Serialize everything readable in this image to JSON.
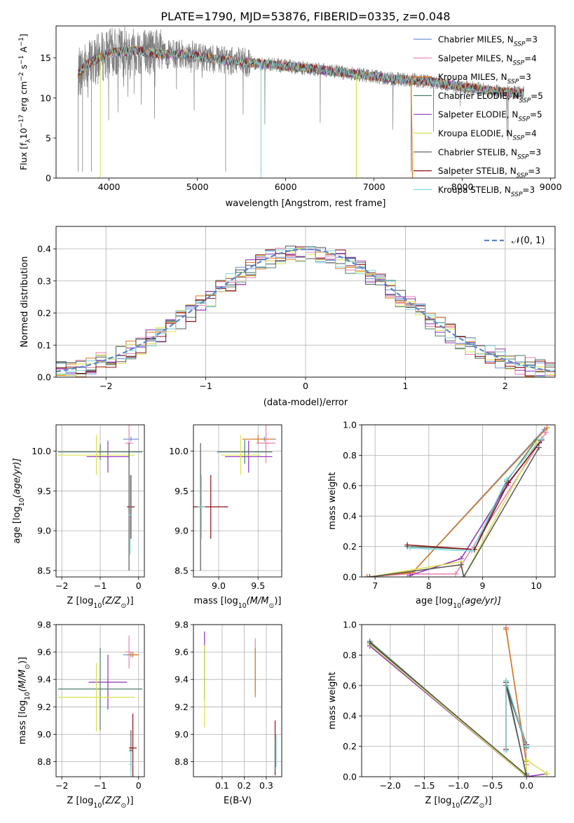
{
  "title": "PLATE=1790, MJD=53876, FIBERID=0335, z=0.048",
  "colors": [
    "#6d8fd6",
    "#e97fb0",
    "#d97a1c",
    "#4f7b6a",
    "#8e2fb8",
    "#d8e04a",
    "#555555",
    "#8b1010",
    "#7dd8e0"
  ],
  "normal_color": "#5b86c9",
  "legend_labels": [
    "Chabrier MILES, N",
    "Salpeter MILES, N",
    "Kroupa MILES, N",
    "Chabrier ELODIE, N",
    "Salpeter ELODIE, N",
    "Kroupa ELODIE, N",
    "Chabrier STELIB, N",
    "Salpeter STELIB, N",
    "Kroupa STELIB, N"
  ],
  "legend_sub": "SSP",
  "legend_nssp": [
    "=3",
    "=4",
    "=3",
    "=5",
    "=5",
    "=4",
    "=3",
    "=3",
    "=3"
  ],
  "normal_label": "𝒩(0, 1)",
  "chart_data": [
    {
      "id": "spectrum",
      "type": "line",
      "xlabel": "wavelength [Angstrom, rest frame]",
      "ylabel_main": "Flux [f",
      "ylabel_sub": "λ",
      "ylabel_rest": "10",
      "ylabel_sup1": "−17",
      "ylabel_mid": " erg cm",
      "ylabel_sup2": "−2",
      "ylabel_mid2": " s",
      "ylabel_sup3": "−1",
      "ylabel_mid3": " A",
      "ylabel_sup4": "−1",
      "ylabel_end": "]",
      "xlim": [
        3400,
        9050
      ],
      "ylim": [
        0,
        19
      ],
      "xticks": [
        "4000",
        "5000",
        "6000",
        "7000",
        "8000",
        "9000"
      ],
      "yticks": [
        "0",
        "5",
        "10",
        "15"
      ],
      "data_range": [
        3650,
        8700
      ],
      "continuum": [
        [
          3650,
          13.0
        ],
        [
          3750,
          14.2
        ],
        [
          4000,
          15.6
        ],
        [
          4300,
          16.0
        ],
        [
          4600,
          15.4
        ],
        [
          4900,
          15.5
        ],
        [
          5200,
          14.8
        ],
        [
          5600,
          14.4
        ],
        [
          6000,
          14.0
        ],
        [
          6400,
          13.5
        ],
        [
          6800,
          13.0
        ],
        [
          7200,
          12.4
        ],
        [
          7600,
          12.1
        ],
        [
          8000,
          11.4
        ],
        [
          8400,
          10.8
        ],
        [
          8700,
          10.6
        ]
      ],
      "model_lines": [
        [
          7420,
          0
        ],
        [
          6800,
          0
        ],
        [
          3900,
          0
        ],
        [
          5720,
          0
        ]
      ]
    },
    {
      "id": "residuals",
      "type": "histogram",
      "xlabel": "(data-model)/error",
      "ylabel": "Normed distribution",
      "xlim": [
        -2.5,
        2.5
      ],
      "ylim": [
        0,
        0.47
      ],
      "xticks": [
        "−2",
        "−1",
        "0",
        "1",
        "2"
      ],
      "yticks": [
        "0.0",
        "0.1",
        "0.2",
        "0.3",
        "0.4"
      ],
      "bin_width": 0.1,
      "bins_start": -2.5,
      "normal": {
        "mu": 0,
        "sigma": 1
      }
    },
    {
      "id": "age_vs_Z",
      "type": "scatter",
      "xlabel": "Z [log",
      "xlabel_sub": "10",
      "xlabel_rest": "(Z/Z",
      "xlabel_sub2": "⊙",
      "xlabel_end": ")]",
      "ylabel": "age  [log",
      "ylabel_sub": "10",
      "ylabel_rest": "(age/yr)]",
      "xlim": [
        -2.15,
        0.15
      ],
      "ylim": [
        8.42,
        10.33
      ],
      "xticks": [
        "−2",
        "−1",
        "0"
      ],
      "yticks": [
        "8.5",
        "9.0",
        "9.5",
        "10.0"
      ],
      "points": [
        {
          "x": -0.2,
          "y": 10.15,
          "xerr": 0.2,
          "yerr": 0.03,
          "c": 0
        },
        {
          "x": -0.25,
          "y": 10.1,
          "xerr": 0.1,
          "yerr": 0.25,
          "c": 1
        },
        {
          "x": -0.8,
          "y": 9.93,
          "xerr": 0.55,
          "yerr": 0.2,
          "c": 4
        },
        {
          "x": -1.0,
          "y": 9.99,
          "xerr": 1.1,
          "yerr": 0.1,
          "c": 3
        },
        {
          "x": -1.1,
          "y": 9.95,
          "xerr": 1.0,
          "yerr": 0.25,
          "c": 5
        },
        {
          "x": -0.25,
          "y": 9.3,
          "xerr": 0.05,
          "yerr": 0.8,
          "c": 6
        },
        {
          "x": -0.2,
          "y": 9.3,
          "xerr": 0.1,
          "yerr": 0.4,
          "c": 7
        },
        {
          "x": -0.22,
          "y": 9.2,
          "xerr": 0.05,
          "yerr": 0.5,
          "c": 8
        }
      ]
    },
    {
      "id": "age_vs_mass",
      "type": "scatter",
      "xlabel": "mass [log",
      "xlabel_sub": "10",
      "xlabel_rest": "(M/M",
      "xlabel_sub2": "⊙",
      "xlabel_end": ")]",
      "xlim": [
        8.68,
        9.8
      ],
      "ylim": [
        8.42,
        10.33
      ],
      "xticks": [
        "9.0",
        "9.5"
      ],
      "yticks": [
        "8.5",
        "9.0",
        "9.5",
        "10.0"
      ],
      "points": [
        {
          "x": 9.58,
          "y": 10.15,
          "xerr": 0.15,
          "yerr": 0.03,
          "c": 0
        },
        {
          "x": 9.6,
          "y": 10.1,
          "xerr": 0.12,
          "yerr": 0.25,
          "c": 1
        },
        {
          "x": 9.5,
          "y": 10.15,
          "xerr": 0.2,
          "yerr": 0.05,
          "c": 2
        },
        {
          "x": 9.38,
          "y": 9.93,
          "xerr": 0.3,
          "yerr": 0.2,
          "c": 4
        },
        {
          "x": 9.33,
          "y": 9.99,
          "xerr": 0.35,
          "yerr": 0.15,
          "c": 3
        },
        {
          "x": 9.28,
          "y": 9.95,
          "xerr": 0.25,
          "yerr": 0.25,
          "c": 5
        },
        {
          "x": 8.77,
          "y": 9.3,
          "xerr": 0.05,
          "yerr": 0.8,
          "c": 6
        },
        {
          "x": 8.9,
          "y": 9.3,
          "xerr": 0.22,
          "yerr": 0.4,
          "c": 7
        },
        {
          "x": 8.78,
          "y": 9.3,
          "xerr": 0.05,
          "yerr": 0.4,
          "c": 8
        }
      ]
    },
    {
      "id": "massweight_vs_age",
      "type": "line",
      "xlabel": "age  [log",
      "xlabel_sub": "10",
      "xlabel_rest": "(age/yr)]",
      "ylabel": "mass weight",
      "xlim": [
        6.75,
        10.35
      ],
      "ylim": [
        0,
        1
      ],
      "xticks": [
        "7",
        "8",
        "9",
        "10"
      ],
      "yticks": [
        "0.0",
        "0.2",
        "0.4",
        "0.6",
        "0.8",
        "1.0"
      ],
      "series": [
        {
          "c": 0,
          "pts": [
            [
              6.85,
              0.0
            ],
            [
              7.7,
              0.03
            ],
            [
              10.15,
              0.97
            ]
          ]
        },
        {
          "c": 1,
          "pts": [
            [
              6.85,
              0.0
            ],
            [
              7.6,
              0.02
            ],
            [
              8.5,
              0.02
            ],
            [
              10.18,
              0.95
            ]
          ]
        },
        {
          "c": 2,
          "pts": [
            [
              6.85,
              0.0
            ],
            [
              7.7,
              0.03
            ],
            [
              10.2,
              0.98
            ]
          ]
        },
        {
          "c": 3,
          "pts": [
            [
              7.6,
              0.2
            ],
            [
              8.85,
              0.18
            ],
            [
              9.45,
              0.63
            ],
            [
              10.0,
              0.9
            ]
          ]
        },
        {
          "c": 4,
          "pts": [
            [
              7.65,
              0.01
            ],
            [
              8.6,
              0.12
            ],
            [
              9.45,
              0.6
            ],
            [
              10.05,
              0.88
            ]
          ]
        },
        {
          "c": 5,
          "pts": [
            [
              6.9,
              0.0
            ],
            [
              8.6,
              0.1
            ],
            [
              8.65,
              0.0
            ],
            [
              10.0,
              0.88
            ]
          ]
        },
        {
          "c": 6,
          "pts": [
            [
              6.9,
              0.0
            ],
            [
              8.6,
              0.08
            ],
            [
              8.65,
              0.0
            ],
            [
              10.05,
              0.85
            ]
          ]
        },
        {
          "c": 7,
          "pts": [
            [
              7.6,
              0.21
            ],
            [
              8.85,
              0.18
            ],
            [
              9.48,
              0.62
            ],
            [
              10.1,
              0.9
            ]
          ]
        },
        {
          "c": 8,
          "pts": [
            [
              7.65,
              0.19
            ],
            [
              8.8,
              0.17
            ],
            [
              9.45,
              0.64
            ],
            [
              10.1,
              0.91
            ]
          ]
        }
      ]
    },
    {
      "id": "mass_vs_Z",
      "type": "scatter",
      "xlabel": "Z [log",
      "xlabel_sub": "10",
      "xlabel_rest": "(Z/Z",
      "xlabel_sub2": "⊙",
      "xlabel_end": ")]",
      "ylabel": "mass [log",
      "ylabel_sub": "10",
      "ylabel_rest": "(M/M",
      "ylabel_sub2": "⊙",
      "ylabel_end": ")]",
      "xlim": [
        -2.15,
        0.15
      ],
      "ylim": [
        8.69,
        9.8
      ],
      "xticks": [
        "−2",
        "−1",
        "0"
      ],
      "yticks": [
        "8.8",
        "9.0",
        "9.2",
        "9.4",
        "9.6",
        "9.8"
      ],
      "points": [
        {
          "x": -0.2,
          "y": 9.58,
          "xerr": 0.2,
          "yerr": 0.02,
          "c": 0
        },
        {
          "x": -0.25,
          "y": 9.6,
          "xerr": 0.1,
          "yerr": 0.12,
          "c": 1
        },
        {
          "x": -0.15,
          "y": 9.58,
          "xerr": 0.15,
          "yerr": 0.02,
          "c": 2
        },
        {
          "x": -0.8,
          "y": 9.38,
          "xerr": 0.5,
          "yerr": 0.2,
          "c": 4
        },
        {
          "x": -1.0,
          "y": 9.33,
          "xerr": 1.1,
          "yerr": 0.3,
          "c": 3
        },
        {
          "x": -1.1,
          "y": 9.27,
          "xerr": 1.0,
          "yerr": 0.25,
          "c": 5
        },
        {
          "x": -0.2,
          "y": 8.88,
          "xerr": 0.05,
          "yerr": 0.15,
          "c": 6
        },
        {
          "x": -0.15,
          "y": 8.9,
          "xerr": 0.1,
          "yerr": 0.25,
          "c": 7
        },
        {
          "x": -0.2,
          "y": 8.78,
          "xerr": 0.05,
          "yerr": 0.1,
          "c": 8
        }
      ]
    },
    {
      "id": "mass_vs_EBV",
      "type": "scatter",
      "xlabel": "E(B-V)",
      "xlim": [
        -0.03,
        0.37
      ],
      "ylim": [
        8.69,
        9.8
      ],
      "xticks": [
        "0.1",
        "0.2",
        "0.3"
      ],
      "yticks": [
        "8.8",
        "9.0",
        "9.2",
        "9.4",
        "9.6",
        "9.8"
      ],
      "points": [
        {
          "x": 0.02,
          "y": 9.5,
          "xerr": 0.0,
          "yerr": 0.25,
          "c": 4
        },
        {
          "x": 0.02,
          "y": 9.35,
          "xerr": 0.0,
          "yerr": 0.3,
          "c": 5
        },
        {
          "x": 0.25,
          "y": 9.5,
          "xerr": 0.0,
          "yerr": 0.2,
          "c": 1
        },
        {
          "x": 0.25,
          "y": 9.45,
          "xerr": 0.0,
          "yerr": 0.18,
          "c": 2
        },
        {
          "x": 0.34,
          "y": 8.9,
          "xerr": 0.0,
          "yerr": 0.2,
          "c": 7
        },
        {
          "x": 0.34,
          "y": 8.85,
          "xerr": 0.0,
          "yerr": 0.12,
          "c": 6
        },
        {
          "x": 0.345,
          "y": 8.88,
          "xerr": 0.0,
          "yerr": 0.12,
          "c": 8
        }
      ]
    },
    {
      "id": "massweight_vs_Z",
      "type": "line",
      "xlabel": "Z [log",
      "xlabel_sub": "10",
      "xlabel_rest": "(Z/Z",
      "xlabel_sub2": "⊙",
      "xlabel_end": ")]",
      "ylabel": "mass weight",
      "xlim": [
        -2.42,
        0.42
      ],
      "ylim": [
        0,
        1
      ],
      "xticks": [
        "−2.0",
        "−1.5",
        "−1.0",
        "−0.5",
        "0.0"
      ],
      "yticks": [
        "0.0",
        "0.2",
        "0.4",
        "0.6",
        "0.8",
        "1.0"
      ],
      "series": [
        {
          "c": 0,
          "pts": [
            [
              -0.3,
              0.97
            ],
            [
              0.0,
              0.1
            ],
            [
              0.0,
              0.02
            ]
          ]
        },
        {
          "c": 1,
          "pts": [
            [
              -0.3,
              0.98
            ],
            [
              0.0,
              0.08
            ],
            [
              0.0,
              0.0
            ]
          ]
        },
        {
          "c": 2,
          "pts": [
            [
              -0.3,
              0.97
            ],
            [
              0.0,
              0.1
            ],
            [
              0.0,
              0.0
            ]
          ]
        },
        {
          "c": 3,
          "pts": [
            [
              -2.3,
              0.89
            ],
            [
              0.0,
              0.0
            ],
            [
              -0.3,
              0.63
            ],
            [
              0.0,
              0.19
            ]
          ]
        },
        {
          "c": 4,
          "pts": [
            [
              -2.3,
              0.86
            ],
            [
              0.0,
              0.0
            ],
            [
              0.3,
              0.02
            ]
          ]
        },
        {
          "c": 5,
          "pts": [
            [
              -2.3,
              0.87
            ],
            [
              0.0,
              0.0
            ],
            [
              0.0,
              0.11
            ],
            [
              0.3,
              0.02
            ]
          ]
        },
        {
          "c": 6,
          "pts": [
            [
              -2.3,
              0.88
            ],
            [
              0.0,
              0.01
            ],
            [
              -0.3,
              0.6
            ],
            [
              0.0,
              0.2
            ]
          ]
        },
        {
          "c": 7,
          "pts": [
            [
              -0.3,
              0.18
            ],
            [
              -0.3,
              0.62
            ],
            [
              0.0,
              0.21
            ]
          ]
        },
        {
          "c": 8,
          "pts": [
            [
              -0.3,
              0.17
            ],
            [
              -0.3,
              0.63
            ],
            [
              0.0,
              0.2
            ]
          ]
        }
      ]
    }
  ]
}
